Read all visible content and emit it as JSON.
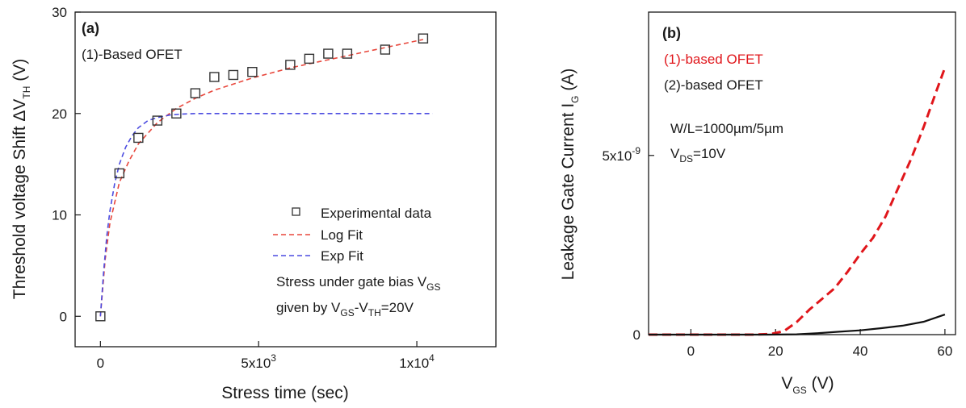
{
  "chart_data": [
    {
      "type": "scatter",
      "panel_label": "(a)",
      "title": "(1)-Based OFET",
      "xlabel": "Stress time (sec)",
      "ylabel": {
        "main": "Threshold voltage Shift ΔV",
        "sub": "TH",
        "unit": " (V)"
      },
      "xlim": [
        -800,
        12500
      ],
      "ylim": [
        -3,
        30
      ],
      "xticks": [
        {
          "v": 0,
          "base": "0",
          "exp": ""
        },
        {
          "v": 5000,
          "base": "5x10",
          "exp": "3"
        },
        {
          "v": 10000,
          "base": "1x10",
          "exp": "4"
        }
      ],
      "yticks": [
        {
          "v": 0,
          "label": "0"
        },
        {
          "v": 10,
          "label": "10"
        },
        {
          "v": 20,
          "label": "20"
        },
        {
          "v": 30,
          "label": "30"
        }
      ],
      "grid": false,
      "legend_position": "bottom-right",
      "series": [
        {
          "name": "Experimental data",
          "kind": "marker",
          "color": "#333333",
          "points": [
            [
              0,
              0
            ],
            [
              600,
              14.1
            ],
            [
              1200,
              17.6
            ],
            [
              1800,
              19.3
            ],
            [
              2400,
              20.0
            ],
            [
              3000,
              22.0
            ],
            [
              3600,
              23.6
            ],
            [
              4200,
              23.8
            ],
            [
              4800,
              24.1
            ],
            [
              6000,
              24.8
            ],
            [
              6600,
              25.4
            ],
            [
              7200,
              25.9
            ],
            [
              7800,
              25.9
            ],
            [
              9000,
              26.3
            ],
            [
              10200,
              27.4
            ]
          ]
        },
        {
          "name": "Log Fit",
          "kind": "dashed-line",
          "color": "#e8473c",
          "points": [
            [
              0,
              0
            ],
            [
              150,
              5.6
            ],
            [
              300,
              9.2
            ],
            [
              600,
              13.2
            ],
            [
              900,
              15.3
            ],
            [
              1200,
              17.0
            ],
            [
              1800,
              19.1
            ],
            [
              2400,
              20.5
            ],
            [
              3000,
              21.5
            ],
            [
              3600,
              22.3
            ],
            [
              4200,
              22.9
            ],
            [
              4800,
              23.5
            ],
            [
              5400,
              24.0
            ],
            [
              6000,
              24.5
            ],
            [
              6600,
              24.9
            ],
            [
              7200,
              25.3
            ],
            [
              7800,
              25.7
            ],
            [
              8400,
              26.1
            ],
            [
              9000,
              26.5
            ],
            [
              9600,
              26.9
            ],
            [
              10200,
              27.3
            ]
          ]
        },
        {
          "name": "Exp Fit",
          "kind": "dashed-line",
          "color": "#4b4be0",
          "points": [
            [
              0,
              0
            ],
            [
              100,
              4.4
            ],
            [
              200,
              7.9
            ],
            [
              300,
              10.4
            ],
            [
              450,
              13.1
            ],
            [
              600,
              15.0
            ],
            [
              800,
              16.7
            ],
            [
              1000,
              17.8
            ],
            [
              1200,
              18.6
            ],
            [
              1500,
              19.3
            ],
            [
              1800,
              19.6
            ],
            [
              2200,
              19.85
            ],
            [
              2600,
              19.95
            ],
            [
              3000,
              20.0
            ],
            [
              4000,
              20.0
            ],
            [
              6000,
              20.0
            ],
            [
              8000,
              20.0
            ],
            [
              10000,
              20.0
            ],
            [
              10500,
              20.0
            ]
          ]
        }
      ],
      "annotations": [
        {
          "id": "stress1",
          "prefix": "Stress under gate bias V",
          "sub": "GS",
          "suffix": ""
        },
        {
          "id": "stress2",
          "prefix": "given by V",
          "sub": "GS",
          "mid": "-V",
          "sub2": "TH",
          "suffix": "=20V"
        }
      ]
    },
    {
      "type": "line",
      "panel_label": "(b)",
      "xlabel": {
        "main": "V",
        "sub": "GS",
        "unit": " (V)"
      },
      "ylabel": {
        "main": "Leakage Gate Current I",
        "sub": "G",
        "unit": " (A)"
      },
      "xlim": [
        -10,
        62.5
      ],
      "ylim": [
        0,
        9e-09
      ],
      "xticks": [
        {
          "v": 0,
          "label": "0"
        },
        {
          "v": 20,
          "label": "20"
        },
        {
          "v": 40,
          "label": "40"
        },
        {
          "v": 60,
          "label": "60"
        }
      ],
      "yticks": [
        {
          "v": 0,
          "base": "0",
          "exp": ""
        },
        {
          "v": 5e-09,
          "base": "5x10",
          "exp": "-9"
        }
      ],
      "grid": false,
      "legend_position": "top-left",
      "series": [
        {
          "name": "(1)-based OFET",
          "kind": "dashed-line",
          "color": "#e0161b",
          "points": [
            [
              -10,
              0
            ],
            [
              15,
              0
            ],
            [
              19,
              2e-11
            ],
            [
              22,
              1e-10
            ],
            [
              25,
              3.5e-10
            ],
            [
              28,
              7e-10
            ],
            [
              31,
              1e-09
            ],
            [
              34,
              1.3e-09
            ],
            [
              37,
              1.75e-09
            ],
            [
              40,
              2.25e-09
            ],
            [
              43,
              2.7e-09
            ],
            [
              46,
              3.3e-09
            ],
            [
              49,
              4.1e-09
            ],
            [
              52,
              4.9e-09
            ],
            [
              55,
              5.8e-09
            ],
            [
              58,
              6.8e-09
            ],
            [
              60,
              7.45e-09
            ]
          ]
        },
        {
          "name": "(2)-based OFET",
          "kind": "solid-line",
          "color": "#111111",
          "points": [
            [
              -10,
              0
            ],
            [
              18,
              0
            ],
            [
              25,
              1e-11
            ],
            [
              30,
              4e-11
            ],
            [
              35,
              8e-11
            ],
            [
              40,
              1.2e-10
            ],
            [
              45,
              1.8e-10
            ],
            [
              50,
              2.5e-10
            ],
            [
              55,
              3.6e-10
            ],
            [
              60,
              5.6e-10
            ]
          ]
        }
      ],
      "annotations": [
        {
          "id": "wl",
          "text": "W/L=1000µm/5µm"
        },
        {
          "id": "vds",
          "prefix": "V",
          "sub": "DS",
          "suffix": "=10V"
        }
      ]
    }
  ]
}
